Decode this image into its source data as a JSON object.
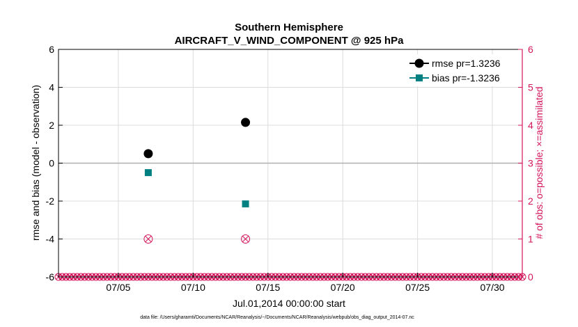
{
  "chart_data": {
    "type": "scatter",
    "title": "Southern Hemisphere",
    "subtitle": "AIRCRAFT_V_WIND_COMPONENT @ 925 hPa",
    "xlabel": "Jul.01,2014 00:00:00 start",
    "ylabel_left": "rmse and bias (model - observation)",
    "ylabel_right": "# of obs: o=possible; ×=assimilated",
    "xlim": [
      1,
      32
    ],
    "ylim_left": [
      -6,
      6
    ],
    "ylim_right": [
      0,
      6
    ],
    "x_ticks": [
      5,
      10,
      15,
      20,
      25,
      30
    ],
    "x_tick_labels": [
      "07/05",
      "07/10",
      "07/15",
      "07/20",
      "07/25",
      "07/30"
    ],
    "y_left_ticks": [
      -6,
      -4,
      -2,
      0,
      2,
      4,
      6
    ],
    "y_left_tick_labels": [
      "-6",
      "-4",
      "-2",
      "0",
      "2",
      "4",
      "6"
    ],
    "y_right_ticks": [
      0,
      1,
      2,
      3,
      4,
      5,
      6
    ],
    "y_right_tick_labels": [
      "0",
      "1",
      "2",
      "3",
      "4",
      "5",
      "6"
    ],
    "grid": true,
    "legend_position": "top-right",
    "zero_line": 0,
    "series": [
      {
        "name": "rmse pr=1.3236",
        "axis": "left",
        "marker": "circle",
        "color": "#000000",
        "x": [
          7,
          13.5
        ],
        "y": [
          0.5,
          2.15
        ]
      },
      {
        "name": "bias pr=-1.3236",
        "axis": "left",
        "marker": "square",
        "color": "#008080",
        "x": [
          7,
          13.5
        ],
        "y": [
          -0.5,
          -2.15
        ]
      },
      {
        "axis": "right",
        "marker": "circle-x",
        "color": "#d4145a",
        "x": [
          7,
          13.5
        ],
        "y": [
          1,
          1
        ]
      }
    ],
    "obs_zero_row": {
      "axis": "right",
      "y": 0,
      "x_start": 1,
      "x_end": 32,
      "step": 0.25,
      "color": "#d4145a"
    }
  },
  "footer_text": "data file: /Users/gharamti/Documents/NCAR/Reanalysis/~/Documents/NCAR/Reanalysis/webpub/obs_diag_output_2014-07.nc",
  "colors": {
    "right_axis": "#d4145a",
    "grid": "#dcdcdc",
    "zero_line": "#b0b0b0"
  }
}
